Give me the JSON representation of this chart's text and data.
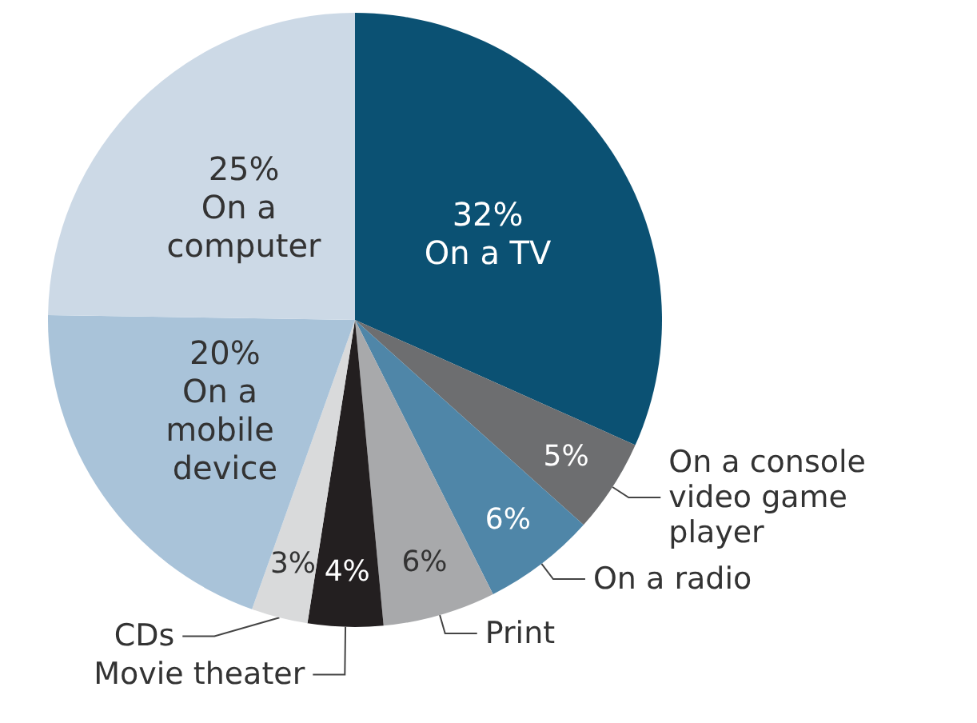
{
  "chart_data": {
    "type": "pie",
    "categories": [
      "On a TV",
      "On a console video game player",
      "On a radio",
      "Print",
      "Movie theater",
      "CDs",
      "On a mobile device",
      "On a computer"
    ],
    "values": [
      32,
      5,
      6,
      6,
      4,
      3,
      20,
      25
    ],
    "value_labels": [
      "32%",
      "5%",
      "6%",
      "6%",
      "4%",
      "3%",
      "20%",
      "25%"
    ],
    "colors": [
      "#0b5173",
      "#6d6e70",
      "#4f86a8",
      "#a8a9ab",
      "#231f20",
      "#d9dadb",
      "#a9c3d9",
      "#ccd9e6"
    ],
    "legend": false
  }
}
